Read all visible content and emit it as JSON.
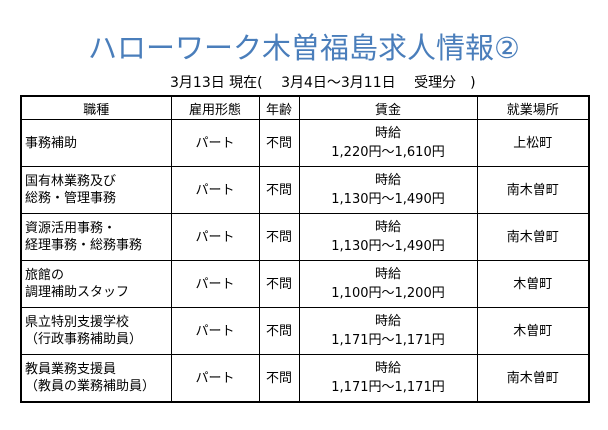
{
  "header": {
    "title": "ハローワーク木曽福島求人情報②",
    "subtitle": "3月13日 現在(　 3月4日～3月11日　 受理分　)"
  },
  "table": {
    "headers": [
      "職種",
      "雇用形態",
      "年齢",
      "賃金",
      "就業場所"
    ],
    "rows": [
      {
        "job": [
          "事務補助"
        ],
        "employment": "パート",
        "age": "不問",
        "wage_type": "時給",
        "wage_range": "1,220円～1,610円",
        "location": "上松町"
      },
      {
        "job": [
          "国有林業務及び",
          "総務・管理事務"
        ],
        "employment": "パート",
        "age": "不問",
        "wage_type": "時給",
        "wage_range": "1,130円～1,490円",
        "location": "南木曽町"
      },
      {
        "job": [
          "資源活用事務・",
          "経理事務・総務事務"
        ],
        "employment": "パート",
        "age": "不問",
        "wage_type": "時給",
        "wage_range": "1,130円～1,490円",
        "location": "南木曽町"
      },
      {
        "job": [
          "旅館の",
          "調理補助スタッフ"
        ],
        "employment": "パート",
        "age": "不問",
        "wage_type": "時給",
        "wage_range": "1,100円～1,200円",
        "location": "木曽町"
      },
      {
        "job": [
          "県立特別支援学校",
          "（行政事務補助員）"
        ],
        "employment": "パート",
        "age": "不問",
        "wage_type": "時給",
        "wage_range": "1,171円～1,171円",
        "location": "木曽町"
      },
      {
        "job": [
          "教員業務支援員",
          "（教員の業務補助員）"
        ],
        "employment": "パート",
        "age": "不問",
        "wage_type": "時給",
        "wage_range": "1,171円～1,171円",
        "location": "南木曽町"
      }
    ]
  }
}
